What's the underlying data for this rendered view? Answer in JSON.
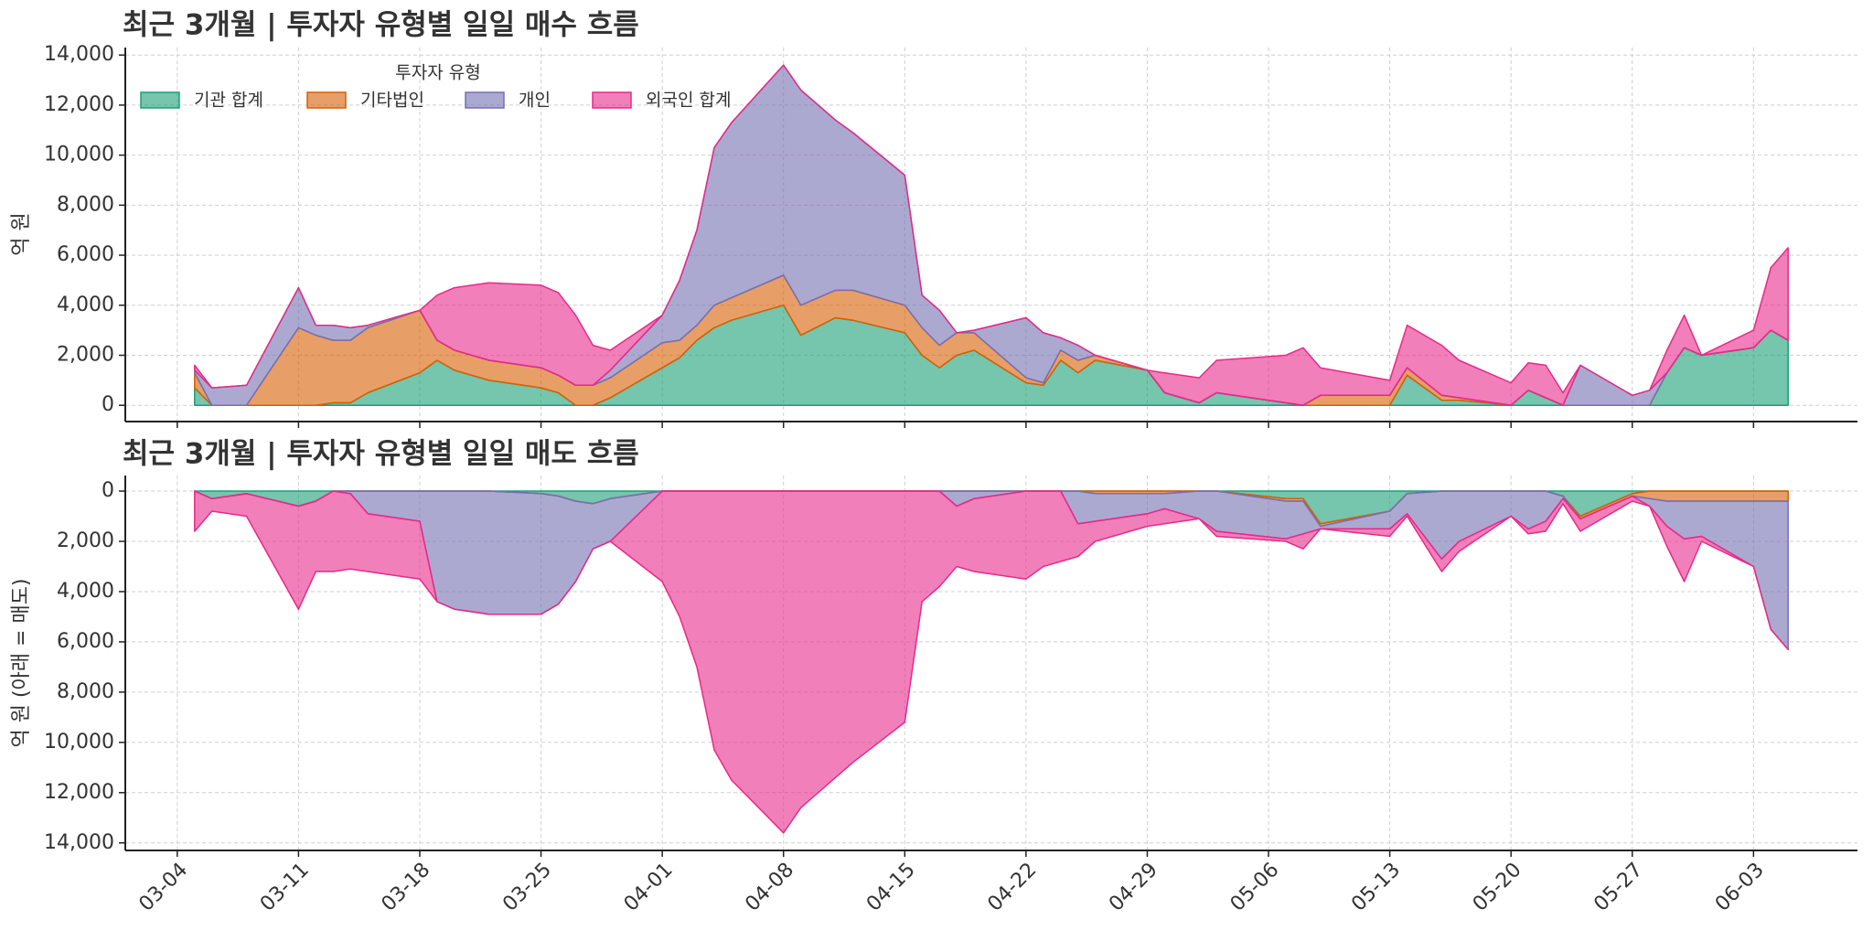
{
  "chart_data": [
    {
      "type": "area",
      "stacked": true,
      "title": "최근 3개월 | 투자자 유형별 일일 매수 흐름",
      "ylabel": "억 원",
      "legend": "upper left",
      "legend_title": "투자자 유형",
      "grid": true,
      "x": [
        "03-05",
        "03-06",
        "03-08",
        "03-11",
        "03-12",
        "03-13",
        "03-14",
        "03-15",
        "03-18",
        "03-19",
        "03-20",
        "03-22",
        "03-25",
        "03-26",
        "03-27",
        "03-28",
        "03-29",
        "04-01",
        "04-02",
        "04-03",
        "04-04",
        "04-05",
        "04-08",
        "04-09",
        "04-11",
        "04-12",
        "04-15",
        "04-16",
        "04-17",
        "04-18",
        "04-19",
        "04-22",
        "04-23",
        "04-24",
        "04-25",
        "04-26",
        "04-29",
        "04-30",
        "05-02",
        "05-03",
        "05-07",
        "05-08",
        "05-09",
        "05-13",
        "05-14",
        "05-16",
        "05-17",
        "05-20",
        "05-21",
        "05-22",
        "05-23",
        "05-24",
        "05-27",
        "05-28",
        "05-29",
        "05-30",
        "05-31",
        "06-03",
        "06-04",
        "06-05"
      ],
      "xlim": [
        "03-01",
        "06-09"
      ],
      "ylim": [
        -650,
        14300
      ],
      "yticks": [
        0,
        {
          "value": 2000,
          "label": "2,000"
        },
        {
          "value": 4000,
          "label": "4,000"
        },
        {
          "value": 6000,
          "label": "6,000"
        },
        {
          "value": 8000,
          "label": "8,000"
        },
        {
          "value": 10000,
          "label": "10,000"
        },
        {
          "value": 12000,
          "label": "12,000"
        },
        {
          "value": 14000,
          "label": "14,000"
        }
      ],
      "series": [
        {
          "name": "기관 합계",
          "color": "#1b9e77",
          "values": [
            700,
            0,
            0,
            0,
            0,
            100,
            100,
            500,
            1300,
            1800,
            1400,
            1000,
            700,
            500,
            0,
            0,
            300,
            1500,
            1900,
            2600,
            3100,
            3400,
            4000,
            2800,
            3500,
            3400,
            2900,
            2000,
            1500,
            2000,
            2200,
            900,
            800,
            1800,
            1300,
            1800,
            1400,
            500,
            100,
            500,
            100,
            0,
            0,
            0,
            1200,
            200,
            200,
            0,
            600,
            300,
            0,
            0,
            0,
            0,
            1300,
            2300,
            2000,
            2300,
            3000,
            2600
          ]
        },
        {
          "name": "기타법인",
          "color": "#d95f02",
          "values": [
            600,
            0,
            0,
            3100,
            2800,
            2500,
            2500,
            2600,
            2500,
            800,
            800,
            800,
            800,
            700,
            800,
            800,
            800,
            1000,
            700,
            600,
            900,
            900,
            1200,
            1200,
            1100,
            1200,
            1100,
            1100,
            900,
            900,
            700,
            200,
            100,
            400,
            500,
            200,
            0,
            0,
            0,
            0,
            0,
            0,
            400,
            400,
            300,
            200,
            100,
            0,
            0,
            0,
            0,
            0,
            0,
            0,
            0,
            0,
            0,
            0,
            0,
            0
          ]
        },
        {
          "name": "개인",
          "color": "#7570b3",
          "values": [
            100,
            700,
            800,
            1600,
            400,
            600,
            500,
            100,
            0,
            0,
            0,
            0,
            0,
            0,
            0,
            0,
            300,
            1100,
            2400,
            3800,
            6300,
            7000,
            8400,
            8600,
            6800,
            6300,
            5200,
            1300,
            1400,
            0,
            100,
            2400,
            2000,
            500,
            600,
            0,
            0,
            0,
            0,
            0,
            0,
            0,
            0,
            0,
            0,
            0,
            0,
            0,
            0,
            0,
            0,
            1600,
            400,
            600,
            0,
            0,
            0,
            0,
            0,
            0
          ]
        },
        {
          "name": "외국인 합계",
          "color": "#e7298a",
          "values": [
            200,
            0,
            0,
            0,
            0,
            0,
            0,
            0,
            0,
            1800,
            2500,
            3100,
            3300,
            3300,
            2800,
            1600,
            800,
            0,
            0,
            0,
            0,
            0,
            0,
            0,
            0,
            0,
            0,
            0,
            0,
            0,
            0,
            0,
            0,
            0,
            0,
            0,
            0,
            800,
            1000,
            1300,
            1900,
            2300,
            1100,
            600,
            1700,
            2000,
            1500,
            900,
            1100,
            1300,
            500,
            0,
            0,
            0,
            900,
            1300,
            0,
            700,
            2500,
            3700
          ]
        }
      ]
    },
    {
      "type": "area",
      "stacked": true,
      "inverted": true,
      "title": "최근 3개월 | 투자자 유형별 일일 매도 흐름",
      "ylabel": "억 원 (아래 = 매도)",
      "grid": true,
      "x": [
        "03-05",
        "03-06",
        "03-08",
        "03-11",
        "03-12",
        "03-13",
        "03-14",
        "03-15",
        "03-18",
        "03-19",
        "03-20",
        "03-22",
        "03-25",
        "03-26",
        "03-27",
        "03-28",
        "03-29",
        "04-01",
        "04-02",
        "04-03",
        "04-04",
        "04-05",
        "04-08",
        "04-09",
        "04-11",
        "04-12",
        "04-15",
        "04-16",
        "04-17",
        "04-18",
        "04-19",
        "04-22",
        "04-23",
        "04-24",
        "04-25",
        "04-26",
        "04-29",
        "04-30",
        "05-02",
        "05-03",
        "05-07",
        "05-08",
        "05-09",
        "05-13",
        "05-14",
        "05-16",
        "05-17",
        "05-20",
        "05-21",
        "05-22",
        "05-23",
        "05-24",
        "05-27",
        "05-28",
        "05-29",
        "05-30",
        "05-31",
        "06-03",
        "06-04",
        "06-05"
      ],
      "xlim": [
        "03-01",
        "06-09"
      ],
      "xticks": [
        "03-04",
        "03-11",
        "03-18",
        "03-25",
        "04-01",
        "04-08",
        "04-15",
        "04-22",
        "04-29",
        "05-06",
        "05-13",
        "05-20",
        "05-27",
        "06-03"
      ],
      "ylim": [
        -620,
        14300
      ],
      "yticks": [
        0,
        {
          "value": 2000,
          "label": "2,000"
        },
        {
          "value": 4000,
          "label": "4,000"
        },
        {
          "value": 6000,
          "label": "6,000"
        },
        {
          "value": 8000,
          "label": "8,000"
        },
        {
          "value": 10000,
          "label": "10,000"
        },
        {
          "value": 12000,
          "label": "12,000"
        },
        {
          "value": 14000,
          "label": "14,000"
        }
      ],
      "series": [
        {
          "color": "#1b9e77",
          "values": [
            0,
            300,
            100,
            600,
            400,
            0,
            0,
            0,
            0,
            0,
            0,
            0,
            100,
            200,
            400,
            500,
            300,
            0,
            0,
            0,
            0,
            0,
            0,
            0,
            0,
            0,
            0,
            0,
            0,
            0,
            0,
            0,
            0,
            0,
            0,
            0,
            0,
            0,
            0,
            0,
            300,
            300,
            1300,
            800,
            100,
            0,
            0,
            0,
            0,
            0,
            200,
            1000,
            100,
            0,
            0,
            0,
            0,
            0,
            0,
            0
          ]
        },
        {
          "color": "#d95f02",
          "values": [
            0,
            0,
            0,
            0,
            0,
            0,
            0,
            0,
            0,
            0,
            0,
            0,
            0,
            0,
            0,
            0,
            0,
            0,
            0,
            0,
            0,
            0,
            0,
            0,
            0,
            0,
            0,
            0,
            0,
            0,
            0,
            0,
            0,
            0,
            0,
            100,
            100,
            100,
            0,
            0,
            100,
            100,
            100,
            0,
            0,
            0,
            0,
            0,
            0,
            0,
            0,
            100,
            100,
            300,
            400,
            400,
            400,
            400,
            400,
            400
          ]
        },
        {
          "color": "#7570b3",
          "values": [
            0,
            0,
            0,
            0,
            0,
            0,
            100,
            900,
            1200,
            4400,
            4700,
            4900,
            4800,
            4300,
            3200,
            1800,
            1700,
            0,
            0,
            0,
            0,
            0,
            0,
            0,
            0,
            0,
            0,
            0,
            0,
            600,
            300,
            0,
            0,
            0,
            1300,
            1100,
            800,
            600,
            1100,
            1600,
            1500,
            1300,
            100,
            700,
            800,
            2700,
            2000,
            1000,
            1500,
            1200,
            100,
            0,
            0,
            300,
            1000,
            1500,
            1400,
            2600,
            5100,
            5900
          ]
        },
        {
          "color": "#e7298a",
          "values": [
            1600,
            500,
            900,
            4100,
            2800,
            3200,
            3000,
            2300,
            2300,
            0,
            0,
            0,
            0,
            0,
            0,
            0,
            0,
            3600,
            5000,
            7000,
            10300,
            11500,
            13600,
            12600,
            11400,
            10800,
            9200,
            4400,
            3800,
            2400,
            2900,
            3500,
            3000,
            2800,
            1300,
            800,
            500,
            600,
            0,
            200,
            100,
            600,
            0,
            300,
            100,
            500,
            400,
            0,
            200,
            400,
            200,
            500,
            200,
            0,
            800,
            1700,
            200,
            0,
            0,
            0
          ]
        }
      ]
    }
  ]
}
